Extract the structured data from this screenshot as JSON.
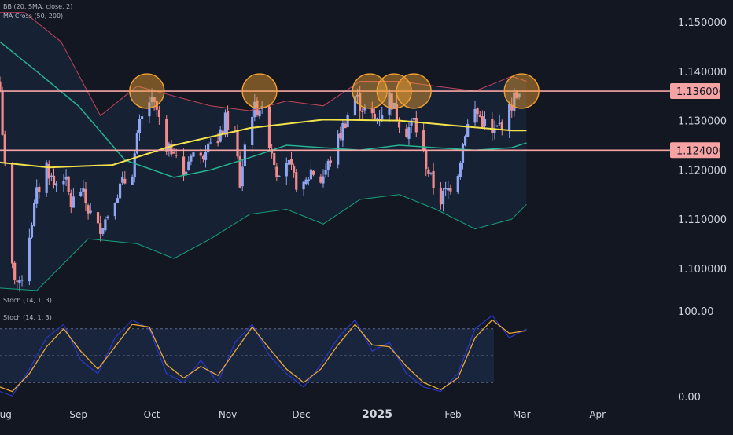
{
  "legend": {
    "bb": "BB (20, SMA, close, 2)",
    "ma_cross": "MA Cross (50, 200)",
    "stoch_top": "Stoch (14, 1, 3)",
    "stoch_bottom": "Stoch (14, 1, 3)"
  },
  "colors": {
    "background": "#131722",
    "up": "#8fa6f2",
    "down": "#f28b8b",
    "level_line": "#f7a6a6",
    "level_badge": "#f5a3a3",
    "ma50": "#26b38f",
    "ma200": "#f2e24c",
    "bb_upper": "#c2455a",
    "bb_lower": "#15a37a",
    "bb_basis": "#2a63d6",
    "bb_fill": "#1b2a44",
    "circle": "#f0a030",
    "stoch_k": "#2f3be0",
    "stoch_d": "#e8a83a",
    "axis_text": "#d1d4dc"
  },
  "chart_data": [
    {
      "type": "candlestick",
      "price_axis": {
        "min": 1.0955,
        "max": 1.1545,
        "ticks": [
          "1.100000",
          "1.110000",
          "1.120000",
          "1.130000",
          "1.140000",
          "1.150000"
        ],
        "tick_values": [
          1.1,
          1.11,
          1.12,
          1.13,
          1.14,
          1.15
        ]
      },
      "levels": [
        {
          "value": 1.136,
          "label": "1.136000"
        },
        {
          "value": 1.124,
          "label": "1.124000"
        }
      ],
      "time_axis": {
        "labels": [
          "Aug",
          "Sep",
          "Oct",
          "Nov",
          "Dec",
          "2025",
          "Feb",
          "Mar",
          "Apr"
        ],
        "dates": [
          "2024-08-01",
          "2024-09-01",
          "2024-10-01",
          "2024-11-01",
          "2024-12-01",
          "2025-01-01",
          "2025-02-01",
          "2025-03-01",
          "2025-04-01"
        ],
        "start": "2024-07-31",
        "end": "2025-04-30"
      },
      "close_path": [
        [
          "2024-07-31",
          1.136
        ],
        [
          "2024-08-02",
          1.12
        ],
        [
          "2024-08-05",
          1.1
        ],
        [
          "2024-08-08",
          1.096
        ],
        [
          "2024-08-12",
          1.107
        ],
        [
          "2024-08-15",
          1.115
        ],
        [
          "2024-08-19",
          1.121
        ],
        [
          "2024-08-22",
          1.117
        ],
        [
          "2024-08-26",
          1.119
        ],
        [
          "2024-08-29",
          1.113
        ],
        [
          "2024-09-02",
          1.116
        ],
        [
          "2024-09-05",
          1.112
        ],
        [
          "2024-09-09",
          1.108
        ],
        [
          "2024-09-12",
          1.11
        ],
        [
          "2024-09-16",
          1.115
        ],
        [
          "2024-09-19",
          1.117
        ],
        [
          "2024-09-23",
          1.12
        ],
        [
          "2024-09-26",
          1.129
        ],
        [
          "2024-09-30",
          1.134
        ],
        [
          "2024-10-03",
          1.132
        ],
        [
          "2024-10-07",
          1.123
        ],
        [
          "2024-10-10",
          1.125
        ],
        [
          "2024-10-14",
          1.118
        ],
        [
          "2024-10-17",
          1.124
        ],
        [
          "2024-10-21",
          1.122
        ],
        [
          "2024-10-24",
          1.127
        ],
        [
          "2024-10-28",
          1.125
        ],
        [
          "2024-10-31",
          1.13
        ],
        [
          "2024-11-04",
          1.127
        ],
        [
          "2024-11-06",
          1.117
        ],
        [
          "2024-11-08",
          1.125
        ],
        [
          "2024-11-11",
          1.132
        ],
        [
          "2024-11-14",
          1.133
        ],
        [
          "2024-11-18",
          1.126
        ],
        [
          "2024-11-21",
          1.12
        ],
        [
          "2024-11-25",
          1.122
        ],
        [
          "2024-11-28",
          1.118
        ],
        [
          "2024-12-02",
          1.116
        ],
        [
          "2024-12-05",
          1.12
        ],
        [
          "2024-12-09",
          1.118
        ],
        [
          "2024-12-12",
          1.121
        ],
        [
          "2024-12-16",
          1.126
        ],
        [
          "2024-12-19",
          1.13
        ],
        [
          "2024-12-23",
          1.135
        ],
        [
          "2024-12-27",
          1.132
        ],
        [
          "2024-12-31",
          1.13
        ],
        [
          "2025-01-03",
          1.132
        ],
        [
          "2025-01-06",
          1.135
        ],
        [
          "2025-01-09",
          1.131
        ],
        [
          "2025-01-13",
          1.128
        ],
        [
          "2025-01-16",
          1.13
        ],
        [
          "2025-01-20",
          1.123
        ],
        [
          "2025-01-23",
          1.118
        ],
        [
          "2025-01-27",
          1.114
        ],
        [
          "2025-01-30",
          1.116
        ],
        [
          "2025-02-03",
          1.12
        ],
        [
          "2025-02-06",
          1.128
        ],
        [
          "2025-02-10",
          1.132
        ],
        [
          "2025-02-13",
          1.13
        ],
        [
          "2025-02-17",
          1.127
        ],
        [
          "2025-02-20",
          1.129
        ],
        [
          "2025-02-24",
          1.132
        ],
        [
          "2025-02-27",
          1.136
        ],
        [
          "2025-03-02",
          1.131
        ]
      ],
      "ma200": [
        [
          "2024-07-31",
          1.1215
        ],
        [
          "2024-08-20",
          1.1205
        ],
        [
          "2024-09-15",
          1.121
        ],
        [
          "2024-10-10",
          1.125
        ],
        [
          "2024-11-10",
          1.1285
        ],
        [
          "2024-12-10",
          1.1302
        ],
        [
          "2025-01-10",
          1.13
        ],
        [
          "2025-02-01",
          1.129
        ],
        [
          "2025-02-25",
          1.128
        ],
        [
          "2025-03-03",
          1.128
        ]
      ],
      "ma50": [
        [
          "2024-07-31",
          1.146
        ],
        [
          "2024-08-15",
          1.14
        ],
        [
          "2024-09-01",
          1.133
        ],
        [
          "2024-09-20",
          1.122
        ],
        [
          "2024-10-10",
          1.1185
        ],
        [
          "2024-10-25",
          1.12
        ],
        [
          "2024-11-10",
          1.1225
        ],
        [
          "2024-11-25",
          1.125
        ],
        [
          "2024-12-10",
          1.1245
        ],
        [
          "2024-12-25",
          1.124
        ],
        [
          "2025-01-10",
          1.125
        ],
        [
          "2025-01-25",
          1.1245
        ],
        [
          "2025-02-10",
          1.124
        ],
        [
          "2025-02-25",
          1.1245
        ],
        [
          "2025-03-03",
          1.1255
        ]
      ],
      "bb_upper": [
        [
          "2024-07-31",
          1.152
        ],
        [
          "2024-08-10",
          1.152
        ],
        [
          "2024-08-25",
          1.146
        ],
        [
          "2024-09-10",
          1.131
        ],
        [
          "2024-09-25",
          1.137
        ],
        [
          "2024-10-10",
          1.135
        ],
        [
          "2024-10-25",
          1.133
        ],
        [
          "2024-11-10",
          1.132
        ],
        [
          "2024-11-25",
          1.134
        ],
        [
          "2024-12-10",
          1.133
        ],
        [
          "2024-12-25",
          1.138
        ],
        [
          "2025-01-10",
          1.138
        ],
        [
          "2025-01-25",
          1.137
        ],
        [
          "2025-02-10",
          1.136
        ],
        [
          "2025-02-25",
          1.139
        ],
        [
          "2025-03-03",
          1.138
        ]
      ],
      "bb_lower": [
        [
          "2024-07-31",
          1.096
        ],
        [
          "2024-08-15",
          1.0955
        ],
        [
          "2024-09-05",
          1.106
        ],
        [
          "2024-09-25",
          1.105
        ],
        [
          "2024-10-10",
          1.102
        ],
        [
          "2024-10-25",
          1.106
        ],
        [
          "2024-11-10",
          1.111
        ],
        [
          "2024-11-25",
          1.112
        ],
        [
          "2024-12-10",
          1.109
        ],
        [
          "2024-12-25",
          1.114
        ],
        [
          "2025-01-10",
          1.115
        ],
        [
          "2025-01-25",
          1.112
        ],
        [
          "2025-02-10",
          1.108
        ],
        [
          "2025-02-25",
          1.11
        ],
        [
          "2025-03-03",
          1.113
        ]
      ],
      "resistance_touches": [
        "2024-09-29",
        "2024-11-14",
        "2024-12-29",
        "2025-01-08",
        "2025-01-16",
        "2025-03-01"
      ]
    },
    {
      "type": "line",
      "title": "Stoch (14, 1, 3)",
      "y_axis": {
        "ticks": [
          "0.00",
          "100.00"
        ],
        "tick_values": [
          0,
          100
        ],
        "band": [
          20,
          80
        ],
        "mid": 50
      },
      "k": [
        [
          "2024-07-31",
          10
        ],
        [
          "2024-08-05",
          5
        ],
        [
          "2024-08-12",
          35
        ],
        [
          "2024-08-19",
          70
        ],
        [
          "2024-08-26",
          85
        ],
        [
          "2024-09-02",
          45
        ],
        [
          "2024-09-09",
          30
        ],
        [
          "2024-09-16",
          70
        ],
        [
          "2024-09-23",
          90
        ],
        [
          "2024-09-30",
          80
        ],
        [
          "2024-10-07",
          30
        ],
        [
          "2024-10-14",
          20
        ],
        [
          "2024-10-21",
          45
        ],
        [
          "2024-10-28",
          20
        ],
        [
          "2024-11-04",
          65
        ],
        [
          "2024-11-11",
          85
        ],
        [
          "2024-11-18",
          50
        ],
        [
          "2024-11-25",
          30
        ],
        [
          "2024-12-02",
          15
        ],
        [
          "2024-12-09",
          40
        ],
        [
          "2024-12-16",
          70
        ],
        [
          "2024-12-23",
          90
        ],
        [
          "2024-12-30",
          55
        ],
        [
          "2025-01-06",
          65
        ],
        [
          "2025-01-13",
          30
        ],
        [
          "2025-01-20",
          15
        ],
        [
          "2025-01-27",
          10
        ],
        [
          "2025-02-03",
          30
        ],
        [
          "2025-02-10",
          80
        ],
        [
          "2025-02-17",
          95
        ],
        [
          "2025-02-24",
          70
        ],
        [
          "2025-03-03",
          80
        ]
      ],
      "d": [
        [
          "2024-07-31",
          15
        ],
        [
          "2024-08-05",
          10
        ],
        [
          "2024-08-12",
          30
        ],
        [
          "2024-08-19",
          60
        ],
        [
          "2024-08-26",
          80
        ],
        [
          "2024-09-02",
          55
        ],
        [
          "2024-09-09",
          35
        ],
        [
          "2024-09-16",
          60
        ],
        [
          "2024-09-23",
          85
        ],
        [
          "2024-09-30",
          82
        ],
        [
          "2024-10-07",
          40
        ],
        [
          "2024-10-14",
          25
        ],
        [
          "2024-10-21",
          38
        ],
        [
          "2024-10-28",
          28
        ],
        [
          "2024-11-04",
          55
        ],
        [
          "2024-11-11",
          82
        ],
        [
          "2024-11-18",
          58
        ],
        [
          "2024-11-25",
          35
        ],
        [
          "2024-12-02",
          20
        ],
        [
          "2024-12-09",
          35
        ],
        [
          "2024-12-16",
          62
        ],
        [
          "2024-12-23",
          85
        ],
        [
          "2024-12-30",
          62
        ],
        [
          "2025-01-06",
          60
        ],
        [
          "2025-01-13",
          38
        ],
        [
          "2025-01-20",
          20
        ],
        [
          "2025-01-27",
          12
        ],
        [
          "2025-02-03",
          25
        ],
        [
          "2025-02-10",
          70
        ],
        [
          "2025-02-17",
          90
        ],
        [
          "2025-02-24",
          75
        ],
        [
          "2025-03-03",
          78
        ]
      ]
    }
  ]
}
